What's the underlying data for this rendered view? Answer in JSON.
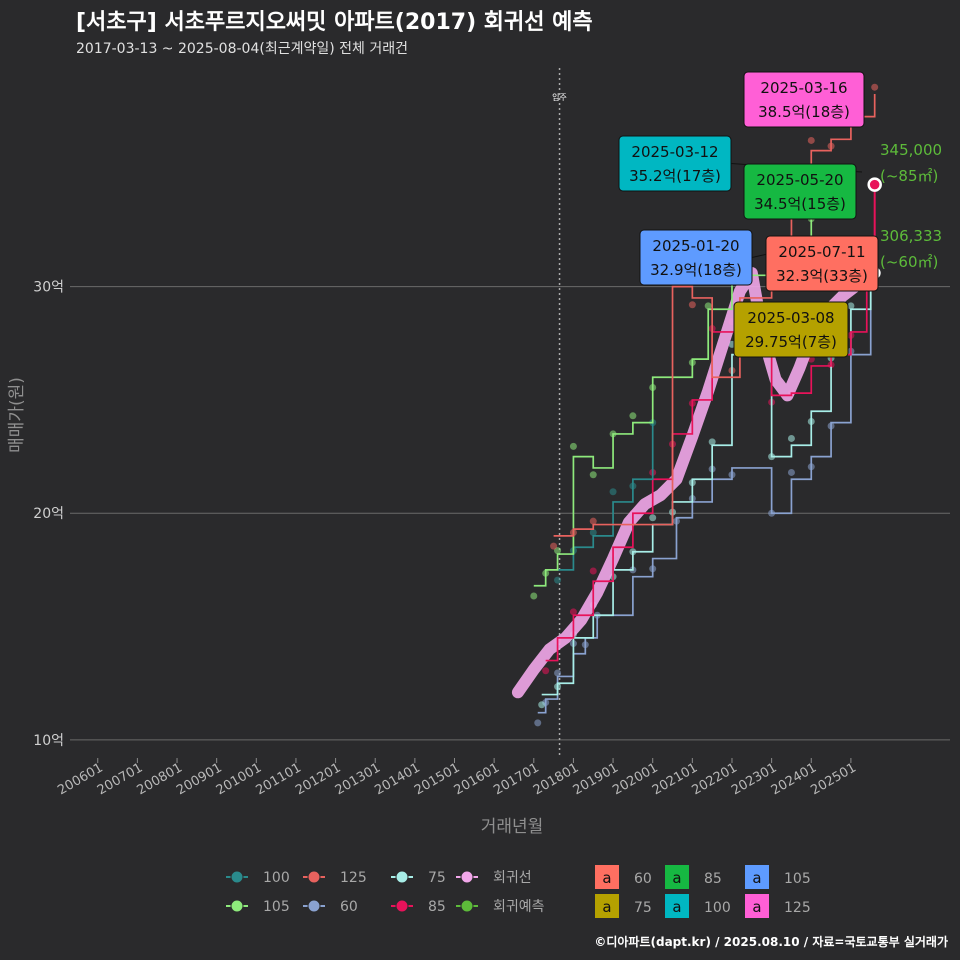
{
  "title": "[서초구] 서초푸르지오써밋 아파트(2017) 회귀선 예측",
  "subtitle": "2017-03-13 ~ 2025-08-04(최근계약일) 전체 거래건",
  "caption": "©디아파트(dapt.kr) / 2025.08.10 / 자료=국토교통부 실거래가",
  "colors": {
    "background": "#2a2a2c",
    "s60": "#ff6f61",
    "s75": "#b5a100",
    "s85": "#16b842",
    "s100": "#00b7c2",
    "s105": "#5e9bff",
    "s125": "#ff5fd6",
    "line100": "#2a8a8c",
    "line105": "#8eea7c",
    "line125": "#e8625e",
    "line60": "#8aa2d0",
    "line75": "#a8eee8",
    "line85": "#e8125a",
    "regression": "#f2a7ea",
    "prediction": "#5dbb3a"
  },
  "chart_data": {
    "type": "line",
    "title": "[서초구] 서초푸르지오써밋 아파트(2017) 회귀선 예측",
    "xlabel": "거래년월",
    "ylabel": "매매가(원)",
    "x_ticks": [
      "200601",
      "200701",
      "200801",
      "200901",
      "201001",
      "201101",
      "201201",
      "201301",
      "201401",
      "201501",
      "201601",
      "201701",
      "201801",
      "201901",
      "202001",
      "202101",
      "202201",
      "202301",
      "202401",
      "202501"
    ],
    "y_ticks": [
      "10억",
      "20억",
      "30억"
    ],
    "y_tick_values": [
      10,
      20,
      30
    ],
    "ylim": [
      9.2,
      40
    ],
    "xlim": [
      2005.3,
      2027.5
    ],
    "vline": {
      "x": 2017.65,
      "label": "입주"
    },
    "grid": true,
    "series": [
      {
        "name": "60",
        "points": [
          [
            2017.1,
            11.2
          ],
          [
            2017.3,
            11.8
          ],
          [
            2017.6,
            12.8
          ],
          [
            2018.0,
            13.8
          ],
          [
            2018.3,
            14.5
          ],
          [
            2018.6,
            15.5
          ],
          [
            2019.5,
            17.2
          ],
          [
            2020.0,
            18.0
          ],
          [
            2020.6,
            19.8
          ],
          [
            2021.0,
            20.5
          ],
          [
            2021.5,
            21.5
          ],
          [
            2022.0,
            22.0
          ],
          [
            2023.0,
            20.0
          ],
          [
            2023.5,
            21.5
          ],
          [
            2024.0,
            22.5
          ],
          [
            2024.5,
            24.0
          ],
          [
            2025.0,
            27.0
          ],
          [
            2025.5,
            30.5
          ]
        ]
      },
      {
        "name": "75",
        "points": [
          [
            2017.2,
            12.0
          ],
          [
            2017.6,
            12.5
          ],
          [
            2018.0,
            14.5
          ],
          [
            2018.5,
            15.5
          ],
          [
            2019.0,
            17.5
          ],
          [
            2019.5,
            18.3
          ],
          [
            2020.0,
            19.5
          ],
          [
            2020.5,
            20.5
          ],
          [
            2021.0,
            21.5
          ],
          [
            2021.5,
            23.0
          ],
          [
            2022.0,
            27.0
          ],
          [
            2022.5,
            29.0
          ],
          [
            2023.0,
            22.5
          ],
          [
            2023.5,
            23.0
          ],
          [
            2024.0,
            24.5
          ],
          [
            2024.5,
            27.0
          ],
          [
            2025.0,
            29.0
          ],
          [
            2025.5,
            30.5
          ]
        ]
      },
      {
        "name": "85",
        "points": [
          [
            2017.3,
            13.5
          ],
          [
            2017.6,
            14.5
          ],
          [
            2018.0,
            15.5
          ],
          [
            2018.5,
            17.0
          ],
          [
            2019.0,
            18.5
          ],
          [
            2019.5,
            20.0
          ],
          [
            2020.0,
            21.5
          ],
          [
            2020.5,
            23.5
          ],
          [
            2021.0,
            25.0
          ],
          [
            2021.5,
            28.0
          ],
          [
            2022.0,
            28.0
          ],
          [
            2023.0,
            25.2
          ],
          [
            2023.5,
            25.3
          ],
          [
            2024.0,
            26.5
          ],
          [
            2024.5,
            27.0
          ],
          [
            2025.0,
            28.0
          ],
          [
            2025.4,
            31.0
          ]
        ]
      },
      {
        "name": "100",
        "points": [
          [
            2017.6,
            17.5
          ],
          [
            2018.0,
            18.5
          ],
          [
            2018.5,
            19.0
          ],
          [
            2019.0,
            20.5
          ],
          [
            2019.5,
            21.5
          ],
          [
            2020.0,
            24.0
          ]
        ]
      },
      {
        "name": "105",
        "points": [
          [
            2017.0,
            16.8
          ],
          [
            2017.3,
            17.5
          ],
          [
            2017.6,
            18.2
          ],
          [
            2018.0,
            22.5
          ],
          [
            2018.5,
            22.0
          ],
          [
            2019.0,
            23.5
          ],
          [
            2019.5,
            24.0
          ],
          [
            2020.0,
            26.0
          ],
          [
            2021.0,
            26.8
          ],
          [
            2021.4,
            29.0
          ],
          [
            2022.0,
            30.5
          ],
          [
            2023.0,
            32.0
          ],
          [
            2024.0,
            33.0
          ],
          [
            2025.0,
            33.5
          ]
        ]
      },
      {
        "name": "125",
        "points": [
          [
            2017.5,
            19.0
          ],
          [
            2018.0,
            19.3
          ],
          [
            2018.5,
            19.5
          ],
          [
            2020.5,
            30.0
          ],
          [
            2021.0,
            29.5
          ],
          [
            2021.5,
            26.0
          ],
          [
            2022.0,
            26.0
          ],
          [
            2022.2,
            29.5
          ],
          [
            2023.0,
            31.5
          ],
          [
            2023.5,
            34.0
          ],
          [
            2024.0,
            36.0
          ],
          [
            2024.5,
            36.5
          ],
          [
            2025.0,
            37.5
          ],
          [
            2025.6,
            38.5
          ]
        ]
      },
      {
        "name": "회귀선",
        "points": [
          [
            2016.6,
            12.1
          ],
          [
            2017.0,
            13.1
          ],
          [
            2017.4,
            14.0
          ],
          [
            2017.8,
            14.5
          ],
          [
            2018.2,
            15.3
          ],
          [
            2018.6,
            16.5
          ],
          [
            2019.0,
            18.0
          ],
          [
            2019.4,
            19.6
          ],
          [
            2019.8,
            20.4
          ],
          [
            2020.2,
            20.8
          ],
          [
            2020.6,
            21.5
          ],
          [
            2021.0,
            23.4
          ],
          [
            2021.4,
            25.4
          ],
          [
            2021.8,
            27.6
          ],
          [
            2022.2,
            29.8
          ],
          [
            2022.5,
            30.6
          ],
          [
            2022.8,
            27.7
          ],
          [
            2023.1,
            25.9
          ],
          [
            2023.4,
            25.2
          ],
          [
            2023.7,
            26.4
          ],
          [
            2024.0,
            27.8
          ],
          [
            2024.4,
            28.9
          ],
          [
            2024.8,
            29.6
          ],
          [
            2025.1,
            30.0
          ],
          [
            2025.4,
            30.4
          ]
        ]
      },
      {
        "name": "회귀예측",
        "points": [
          [
            2025.6,
            34.5
          ],
          [
            2025.6,
            30.6
          ]
        ]
      }
    ],
    "callouts": [
      {
        "date": "2025-03-16",
        "value": "38.5억(18층)",
        "color": "#ff5fd6"
      },
      {
        "date": "2025-03-12",
        "value": "35.2억(17층)",
        "color": "#00b7c2"
      },
      {
        "date": "2025-05-20",
        "value": "34.5억(15층)",
        "color": "#16b842"
      },
      {
        "date": "2025-01-20",
        "value": "32.9억(18층)",
        "color": "#5e9bff"
      },
      {
        "date": "2025-07-11",
        "value": "32.3억(33층)",
        "color": "#ff6f61"
      },
      {
        "date": "2025-03-08",
        "value": "29.75억(7층)",
        "color": "#b5a100"
      }
    ],
    "predictions": [
      {
        "value": "345,000",
        "area": "(~85㎡)"
      },
      {
        "value": "306,333",
        "area": "(~60㎡)"
      }
    ],
    "legend_lines": [
      "100",
      "125",
      "75",
      "회귀선",
      "105",
      "60",
      "85",
      "회귀예측"
    ],
    "legend_boxes": [
      {
        "label": "60",
        "color": "#ff6f61"
      },
      {
        "label": "85",
        "color": "#16b842"
      },
      {
        "label": "105",
        "color": "#5e9bff"
      },
      {
        "label": "75",
        "color": "#b5a100"
      },
      {
        "label": "100",
        "color": "#00b7c2"
      },
      {
        "label": "125",
        "color": "#ff5fd6"
      }
    ],
    "legend_glyph": "a"
  }
}
